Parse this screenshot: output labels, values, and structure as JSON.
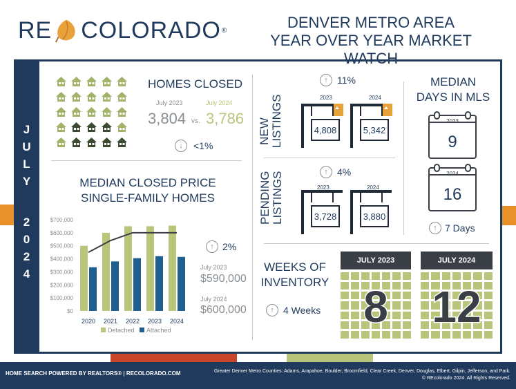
{
  "header": {
    "logo_text_left": "RE",
    "logo_text_right": "COLORADO",
    "logo_mark": "®",
    "title_line1": "DENVER METRO AREA",
    "title_line2": "YEAR OVER YEAR MARKET WATCH"
  },
  "period": {
    "month_letters": [
      "J",
      "U",
      "L",
      "Y"
    ],
    "year_letters": [
      "2",
      "0",
      "2",
      "4"
    ]
  },
  "homes_closed": {
    "title": "HOMES CLOSED",
    "label_2023": "July 2023",
    "label_2024": "July 2024",
    "value_2023": "3,804",
    "vs": "vs.",
    "value_2024": "3,786",
    "change": "<1%",
    "direction_icon": "down-arrow-icon"
  },
  "median_price": {
    "title_line1": "MEDIAN CLOSED PRICE",
    "title_line2": "SINGLE-FAMILY HOMES",
    "change": "2%",
    "label_2023": "July 2023",
    "value_2023": "$590,000",
    "label_2024": "July 2024",
    "value_2024": "$600,000"
  },
  "chart_data": {
    "type": "bar",
    "categories": [
      "2020",
      "2021",
      "2022",
      "2023",
      "2024"
    ],
    "series": [
      {
        "name": "Detached",
        "values": [
          500000,
          600000,
          650000,
          650000,
          655000
        ],
        "color": "#b9c57a"
      },
      {
        "name": "Attached",
        "values": [
          335000,
          380000,
          405000,
          420000,
          415000
        ],
        "color": "#1f5f8f"
      }
    ],
    "line_values": [
      450000,
      540000,
      600000,
      600000,
      600000
    ],
    "yticks": [
      "$700,000",
      "$600,000",
      "$500,000",
      "$400,000",
      "$300,000",
      "$200,000",
      "$100,000",
      "$0"
    ],
    "ylim": [
      0,
      700000
    ],
    "legend": [
      "Detached",
      "Attached"
    ]
  },
  "new_listings": {
    "title_line1": "NEW",
    "title_line2": "LISTINGS",
    "change": "11%",
    "label_2023": "2023",
    "label_2024": "2024",
    "value_2023": "4,808",
    "value_2024": "5,342"
  },
  "pending_listings": {
    "title_line1": "PENDING",
    "title_line2": "LISTINGS",
    "change": "4%",
    "label_2023": "2023",
    "label_2024": "2024",
    "value_2023": "3,728",
    "value_2024": "3,880"
  },
  "days_in_mls": {
    "title_line1": "MEDIAN",
    "title_line2": "DAYS IN MLS",
    "label_2023": "2023",
    "value_2023": "9",
    "label_2024": "2024",
    "value_2024": "16",
    "change": "7 Days"
  },
  "inventory": {
    "title_line1": "WEEKS OF",
    "title_line2": "INVENTORY",
    "change": "4 Weeks",
    "head_2023": "JULY 2023",
    "value_2023": "8",
    "head_2024": "JULY 2024",
    "value_2024": "12"
  },
  "footer": {
    "left": "HOME SEARCH POWERED BY REALTORS® | RECOLORADO.COM",
    "right_line1": "Greater Denver Metro Counties: Adams, Arapahoe, Boulder, Broomfield, Clear Creek, Denver, Douglas, Elbert, Gilpin, Jefferson, and Park.",
    "right_line2": "© REcolorado 2024. All Rights Reserved."
  },
  "colors": {
    "navy": "#1f3a5c",
    "olive": "#b9c57a",
    "orange": "#e8902a",
    "blue_bar": "#1f5f8f"
  }
}
